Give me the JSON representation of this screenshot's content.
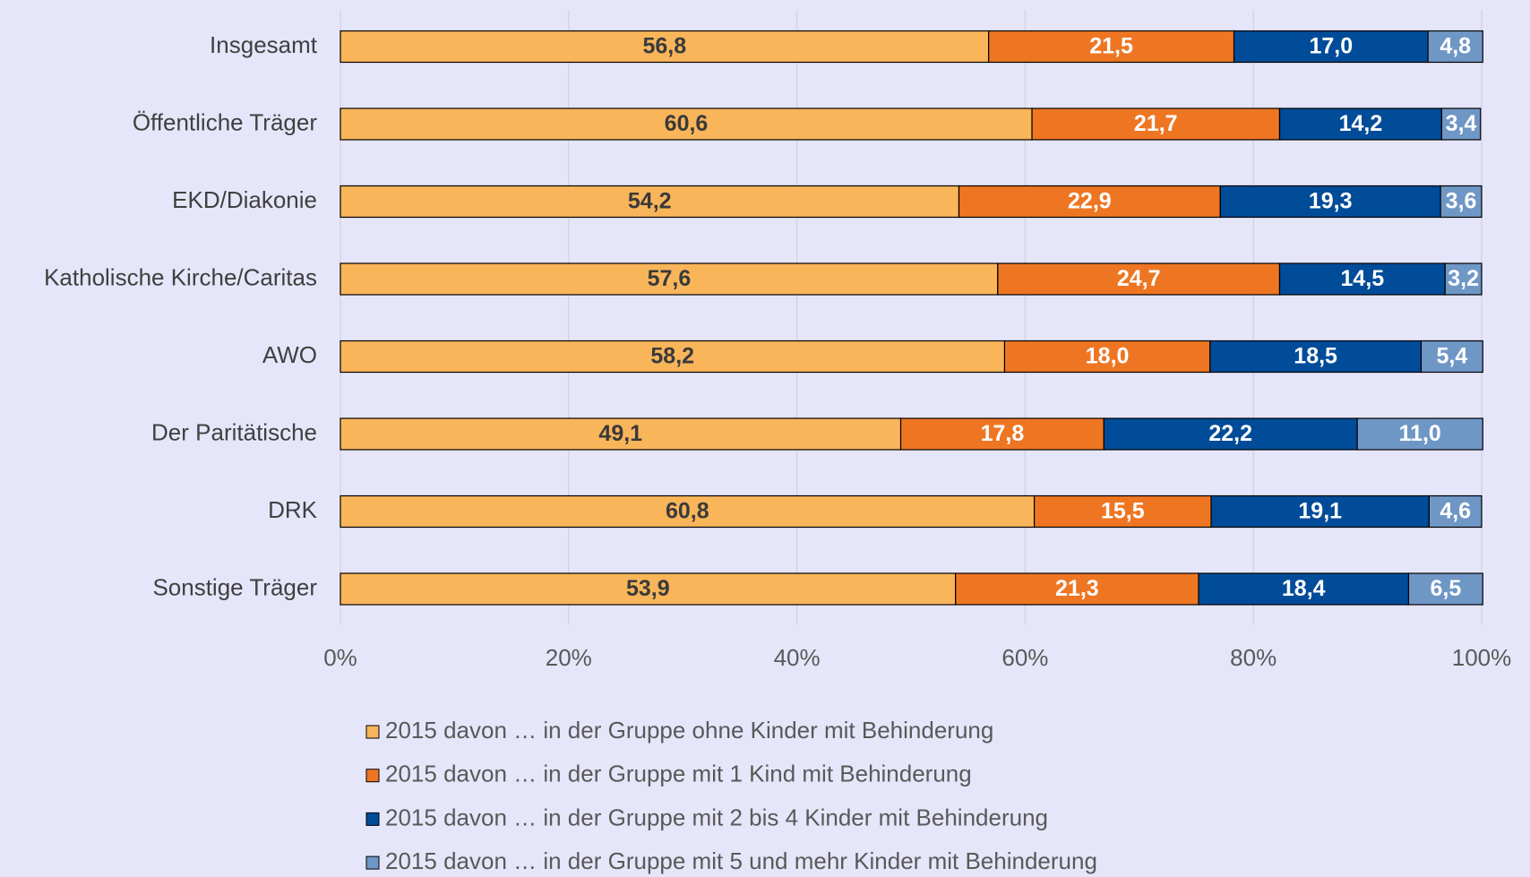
{
  "chart_data": {
    "type": "stacked-bar-horizontal",
    "categories": [
      "Insgesamt",
      "Öffentliche Träger",
      "EKD/Diakonie",
      "Katholische Kirche/Caritas",
      "AWO",
      "Der Paritätische",
      "DRK",
      "Sonstige Träger"
    ],
    "series": [
      {
        "name": "2015 davon … in der Gruppe ohne Kinder mit Behinderung",
        "color": "#F9B55A",
        "label_color": "#3a3a3a",
        "values": [
          56.8,
          60.6,
          54.2,
          57.6,
          58.2,
          49.1,
          60.8,
          53.9
        ],
        "value_labels": [
          "56,8",
          "60,6",
          "54,2",
          "57,6",
          "58,2",
          "49,1",
          "60,8",
          "53,9"
        ]
      },
      {
        "name": "2015 davon … in der Gruppe mit 1 Kind mit Behinderung",
        "color": "#EE7622",
        "label_color": "#ffffff",
        "values": [
          21.5,
          21.7,
          22.9,
          24.7,
          18.0,
          17.8,
          15.5,
          21.3
        ],
        "value_labels": [
          "21,5",
          "21,7",
          "22,9",
          "24,7",
          "18,0",
          "17,8",
          "15,5",
          "21,3"
        ]
      },
      {
        "name": "2015 davon … in der Gruppe mit 2 bis 4 Kinder mit Behinderung",
        "color": "#004C99",
        "label_color": "#ffffff",
        "values": [
          17.0,
          14.2,
          19.3,
          14.5,
          18.5,
          22.2,
          19.1,
          18.4
        ],
        "value_labels": [
          "17,0",
          "14,2",
          "19,3",
          "14,5",
          "18,5",
          "22,2",
          "19,1",
          "18,4"
        ]
      },
      {
        "name": "2015 davon … in der Gruppe mit 5 und mehr Kinder mit Behinderung",
        "color": "#6F97C6",
        "label_color": "#ffffff",
        "values": [
          4.8,
          3.4,
          3.6,
          3.2,
          5.4,
          11.0,
          4.6,
          6.5
        ],
        "value_labels": [
          "4,8",
          "3,4",
          "3,6",
          "3,2",
          "5,4",
          "11,0",
          "4,6",
          "6,5"
        ]
      }
    ],
    "xlim": [
      0,
      100
    ],
    "xticks": [
      {
        "value": 0,
        "label": "0%"
      },
      {
        "value": 20,
        "label": "20%"
      },
      {
        "value": 40,
        "label": "40%"
      },
      {
        "value": 60,
        "label": "60%"
      },
      {
        "value": 80,
        "label": "80%"
      },
      {
        "value": 100,
        "label": "100%"
      }
    ],
    "grid": true,
    "legend": "bottom"
  }
}
